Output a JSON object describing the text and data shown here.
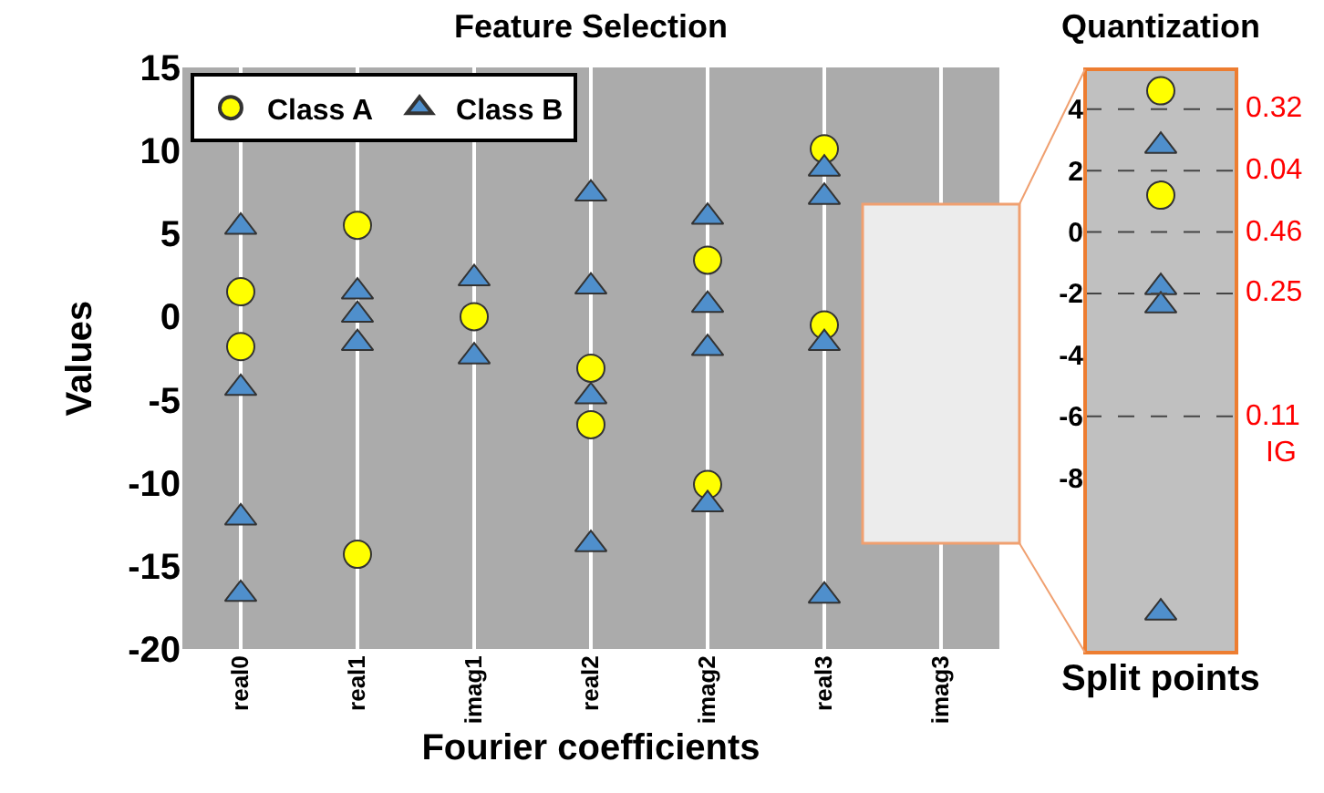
{
  "chart_data": [
    {
      "type": "scatter",
      "title": "Feature Selection",
      "xlabel": "Fourier coefficients",
      "ylabel": "Values",
      "categories": [
        "real0",
        "real1",
        "imag1",
        "real2",
        "imag2",
        "real3",
        "imag3"
      ],
      "ylim": [
        -20,
        15
      ],
      "yticks": [
        15,
        10,
        5,
        0,
        -5,
        -10,
        -15,
        -20
      ],
      "grid": "x",
      "legend": "top left",
      "series": [
        {
          "name": "Class A",
          "color": "#ffff00",
          "marker": "circle",
          "x": [
            "real0",
            "real0",
            "real1",
            "real1",
            "imag1",
            "real2",
            "real2",
            "imag2",
            "imag2",
            "real3",
            "real3"
          ],
          "values": [
            1.5,
            -1.8,
            5.5,
            -14.3,
            0,
            -3.1,
            -6.5,
            3.4,
            -10.1,
            10.1,
            -0.5
          ]
        },
        {
          "name": "Class B",
          "color": "#4f8fcc",
          "marker": "triangle",
          "x": [
            "real0",
            "real0",
            "real0",
            "real0",
            "real1",
            "real1",
            "real1",
            "imag1",
            "imag1",
            "real2",
            "real2",
            "real2",
            "real2",
            "imag2",
            "imag2",
            "imag2",
            "imag2",
            "real3",
            "real3",
            "real3",
            "real3"
          ],
          "values": [
            5.4,
            -4.3,
            -12.1,
            -16.7,
            1.5,
            0.1,
            -1.6,
            2.3,
            -2.4,
            7.4,
            1.8,
            -4.8,
            -13.7,
            6.0,
            0.7,
            -1.9,
            -11.3,
            8.9,
            7.2,
            -1.6,
            -16.8
          ]
        }
      ]
    },
    {
      "type": "scatter",
      "title": "Quantization",
      "xlabel": "Split points",
      "categories": [
        null
      ],
      "ylim": [
        -13.7,
        5.3
      ],
      "yticks": [
        4,
        2,
        0,
        -2,
        -4,
        -6,
        -8
      ],
      "tick_labels": "y",
      "annotations": [
        "0.32",
        "0.04",
        "0.46",
        "0.25",
        "0.11",
        "IG"
      ],
      "series": [
        {
          "color": "#ffff00",
          "marker": "circle",
          "x": [
            null,
            null
          ],
          "values": [
            4.6,
            1.2
          ]
        },
        {
          "color": "#4f8fcc",
          "marker": "triangle",
          "x": [
            null,
            null,
            null,
            null
          ],
          "values": [
            2.8,
            -1.8,
            -2.4,
            -12.4
          ]
        }
      ],
      "ref_lines": [
        {
          "axis": "y",
          "value": 4,
          "color": "#444444",
          "line_style": "dashed"
        },
        {
          "axis": "y",
          "value": 2,
          "color": "#444444",
          "line_style": "dashed"
        },
        {
          "axis": "y",
          "value": 0,
          "color": "#444444",
          "line_style": "dashed"
        },
        {
          "axis": "y",
          "value": -2,
          "color": "#444444",
          "line_style": "dashed"
        },
        {
          "axis": "y",
          "value": -6,
          "color": "#444444",
          "line_style": "dashed"
        }
      ]
    }
  ]
}
